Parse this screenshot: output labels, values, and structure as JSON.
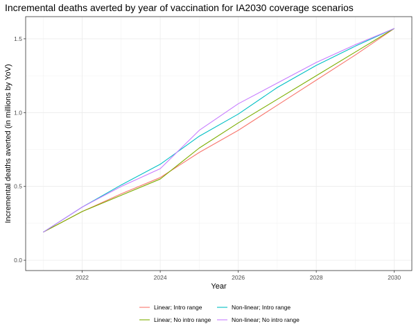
{
  "chart_data": {
    "type": "line",
    "title": "Incremental deaths averted by year of vaccination for IA2030 coverage scenarios",
    "xlabel": "Year",
    "ylabel": "Incremental deaths averted (in millions by YoV)",
    "xlim": [
      2020.55,
      2030.45
    ],
    "ylim": [
      -0.07,
      1.65
    ],
    "x_ticks": [
      2022,
      2024,
      2026,
      2028,
      2030
    ],
    "y_ticks": [
      0.0,
      0.5,
      1.0,
      1.5
    ],
    "y_tick_labels": [
      "0.0",
      "0.5",
      "1.0",
      "1.5"
    ],
    "grid": true,
    "legend_position": "bottom",
    "x": [
      2021,
      2022,
      2023,
      2024,
      2025,
      2026,
      2027,
      2028,
      2029,
      2030
    ],
    "series": [
      {
        "name": "Linear; Intro range",
        "color": "#F8766D",
        "values": [
          0.19,
          0.33,
          0.45,
          0.56,
          0.73,
          0.88,
          1.05,
          1.22,
          1.39,
          1.57
        ]
      },
      {
        "name": "Linear; No intro range",
        "color": "#7CAE00",
        "values": [
          0.19,
          0.33,
          0.44,
          0.55,
          0.76,
          0.93,
          1.09,
          1.25,
          1.41,
          1.57
        ]
      },
      {
        "name": "Non-linear; Intro range",
        "color": "#00BFC4",
        "values": [
          0.19,
          0.36,
          0.51,
          0.65,
          0.84,
          0.99,
          1.17,
          1.32,
          1.45,
          1.57
        ]
      },
      {
        "name": "Non-linear; No intro range",
        "color": "#C77CFF",
        "values": [
          0.19,
          0.36,
          0.5,
          0.62,
          0.88,
          1.06,
          1.2,
          1.34,
          1.46,
          1.57
        ]
      }
    ]
  }
}
